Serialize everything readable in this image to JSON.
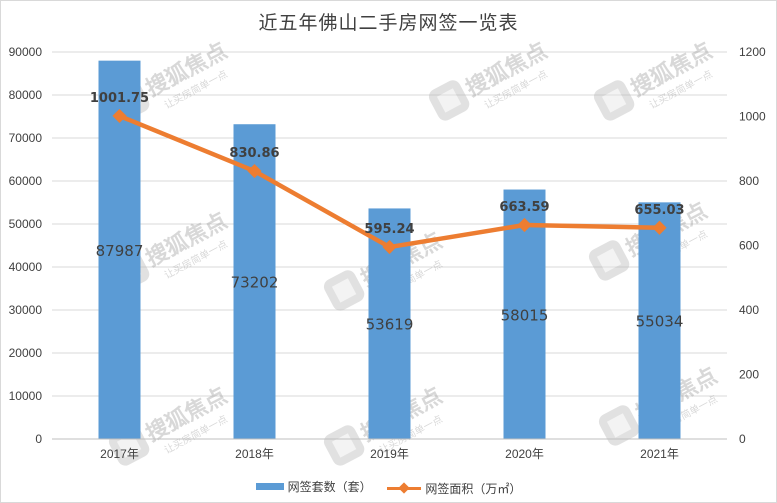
{
  "chart_data": {
    "type": "bar",
    "title": "近五年佛山二手房网签一览表",
    "categories": [
      "2017年",
      "2018年",
      "2019年",
      "2020年",
      "2021年"
    ],
    "series": [
      {
        "name": "网签套数（套）",
        "type": "bar",
        "axis": "left",
        "color": "#5b9bd5",
        "values": [
          87987,
          73202,
          53619,
          58015,
          55034
        ],
        "labels": [
          "87987",
          "73202",
          "53619",
          "58015",
          "55034"
        ]
      },
      {
        "name": "网签面积（万㎡）",
        "type": "line",
        "axis": "right",
        "color": "#ed7d31",
        "values": [
          1001.75,
          830.86,
          595.24,
          663.59,
          655.03
        ],
        "labels": [
          "1001.75",
          "830.86",
          "595.24",
          "663.59",
          "655.03"
        ]
      }
    ],
    "left_axis": {
      "ylim": [
        0,
        90000
      ],
      "ticks": [
        "0",
        "10000",
        "20000",
        "30000",
        "40000",
        "50000",
        "60000",
        "70000",
        "80000",
        "90000"
      ]
    },
    "right_axis": {
      "ylim": [
        0,
        1200
      ],
      "ticks": [
        "0",
        "200",
        "400",
        "600",
        "800",
        "1000",
        "1200"
      ]
    },
    "grid": true,
    "legend_position": "bottom",
    "watermark": {
      "brand": "搜狐焦点",
      "slogan": "让买房简单一点"
    }
  }
}
